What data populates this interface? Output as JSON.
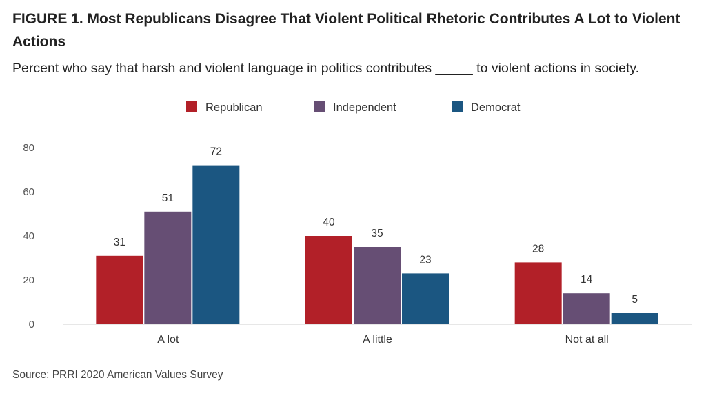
{
  "figure": {
    "title": "FIGURE 1.  Most Republicans Disagree That Violent Political Rhetoric Contributes A Lot to Violent Actions",
    "subtitle": "Percent who say that harsh and violent language in politics contributes _____ to violent actions in society.",
    "source": "Source: PRRI 2020 American Values Survey"
  },
  "chart_data": {
    "type": "bar",
    "categories": [
      "A lot",
      "A little",
      "Not at all"
    ],
    "series": [
      {
        "name": "Republican",
        "values": [
          31,
          40,
          28
        ],
        "color": "#b22028"
      },
      {
        "name": "Independent",
        "values": [
          51,
          35,
          14
        ],
        "color": "#664e74"
      },
      {
        "name": "Democrat",
        "values": [
          72,
          23,
          5
        ],
        "color": "#1b5681"
      }
    ],
    "ylim": [
      0,
      80
    ],
    "yticks": [
      0,
      20,
      40,
      60,
      80
    ],
    "grid": false,
    "legend": "top-center",
    "title": "FIGURE 1.  Most Republicans Disagree That Violent Political Rhetoric Contributes A Lot to Violent Actions",
    "xlabel": "",
    "ylabel": ""
  }
}
